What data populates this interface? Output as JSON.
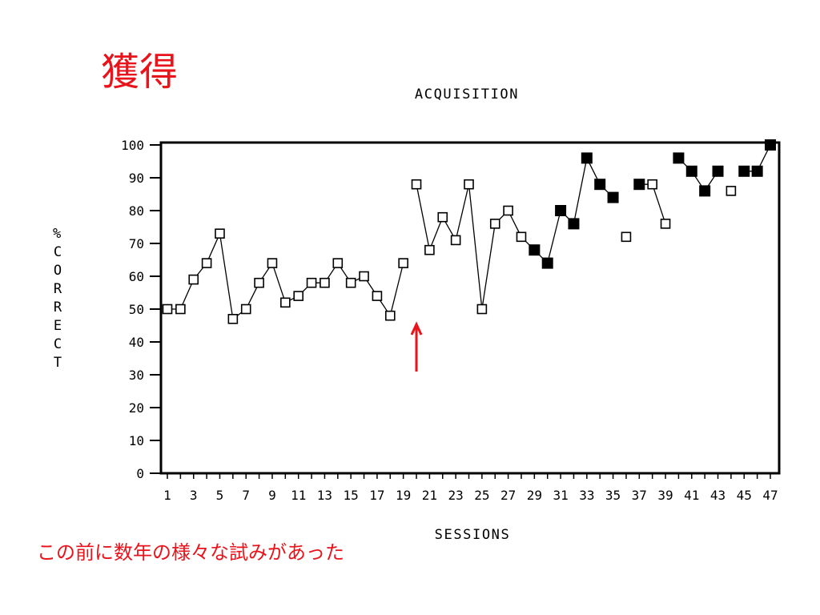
{
  "slide": {
    "heading": "獲得",
    "note": "この前に数年の様々な試みがあった"
  },
  "colors": {
    "accent_red": "#e8131b",
    "ink": "#000000",
    "background": "#ffffff"
  },
  "chart_data": {
    "type": "line",
    "title": "ACQUISITION",
    "xlabel": "SESSIONS",
    "ylabel": "% CORRECT",
    "xlim": [
      1,
      47
    ],
    "ylim": [
      0,
      100
    ],
    "xticks": [
      1,
      3,
      5,
      7,
      9,
      11,
      13,
      15,
      17,
      19,
      21,
      23,
      25,
      27,
      29,
      31,
      33,
      35,
      37,
      39,
      41,
      43,
      45,
      47
    ],
    "yticks": [
      0,
      10,
      20,
      30,
      40,
      50,
      60,
      70,
      80,
      90,
      100
    ],
    "grid": false,
    "x": [
      1,
      2,
      3,
      4,
      5,
      6,
      7,
      8,
      9,
      10,
      11,
      12,
      13,
      14,
      15,
      16,
      17,
      18,
      19,
      20,
      21,
      22,
      23,
      24,
      25,
      26,
      27,
      28,
      29,
      30,
      31,
      32,
      33,
      34,
      35,
      36,
      37,
      38,
      39,
      40,
      41,
      42,
      43,
      44,
      45,
      46,
      47
    ],
    "values": [
      50,
      50,
      59,
      64,
      73,
      47,
      50,
      58,
      64,
      52,
      54,
      58,
      58,
      64,
      58,
      60,
      54,
      48,
      64,
      88,
      68,
      78,
      71,
      88,
      50,
      76,
      80,
      72,
      68,
      64,
      80,
      76,
      96,
      88,
      84,
      72,
      88,
      88,
      76,
      96,
      92,
      86,
      92,
      86,
      92,
      92,
      100
    ],
    "filled_marker_sessions": [
      29,
      30,
      31,
      32,
      33,
      34,
      35,
      37,
      40,
      41,
      42,
      43,
      45,
      46,
      47
    ],
    "connected_runs": [
      [
        1,
        19
      ],
      [
        20,
        35
      ],
      [
        36,
        36
      ],
      [
        37,
        39
      ],
      [
        40,
        43
      ],
      [
        44,
        44
      ],
      [
        45,
        47
      ]
    ],
    "arrow_marker": {
      "x": 20,
      "color": "#e8131b"
    }
  }
}
